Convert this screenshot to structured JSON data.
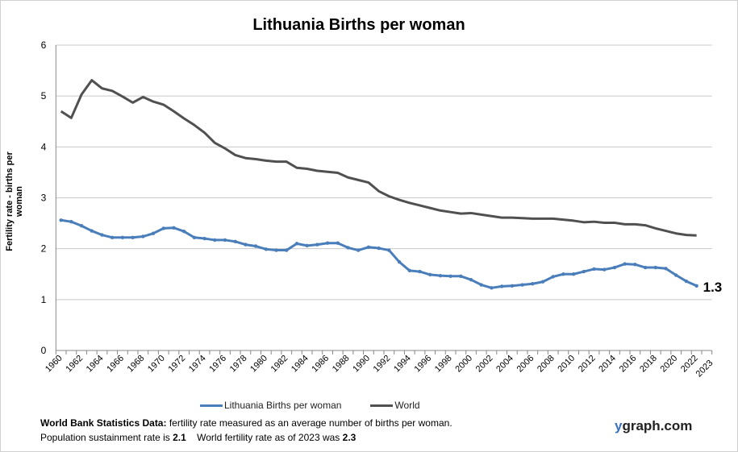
{
  "chart_data": {
    "type": "line",
    "title": "Lithuania Births per woman",
    "xlabel": "",
    "ylabel": "Fertility rate  - births per woman",
    "ylim": [
      0,
      6
    ],
    "yticks": [
      0,
      1,
      2,
      3,
      4,
      5,
      6
    ],
    "grid": true,
    "legend": "bottom",
    "x": [
      1960,
      1961,
      1962,
      1963,
      1964,
      1965,
      1966,
      1967,
      1968,
      1969,
      1970,
      1971,
      1972,
      1973,
      1974,
      1975,
      1976,
      1977,
      1978,
      1979,
      1980,
      1981,
      1982,
      1983,
      1984,
      1985,
      1986,
      1987,
      1988,
      1989,
      1990,
      1991,
      1992,
      1993,
      1994,
      1995,
      1996,
      1997,
      1998,
      1999,
      2000,
      2001,
      2002,
      2003,
      2004,
      2005,
      2006,
      2007,
      2008,
      2009,
      2010,
      2011,
      2012,
      2013,
      2014,
      2015,
      2016,
      2017,
      2018,
      2019,
      2020,
      2021,
      2022,
      2023
    ],
    "xtick_labels": [
      "1960",
      "1962",
      "1964",
      "1966",
      "1968",
      "1970",
      "1972",
      "1974",
      "1976",
      "1978",
      "1980",
      "1982",
      "1984",
      "1986",
      "1988",
      "1990",
      "1992",
      "1994",
      "1996",
      "1998",
      "2000",
      "2002",
      "2004",
      "2006",
      "2008",
      "2010",
      "2012",
      "2014",
      "2016",
      "2018",
      "2020",
      "2022",
      "2023"
    ],
    "series": [
      {
        "name": "Lithuania Births per woman",
        "color": "#4a7ebb",
        "markers": true,
        "values": [
          2.56,
          2.53,
          2.45,
          2.35,
          2.27,
          2.22,
          2.22,
          2.22,
          2.24,
          2.3,
          2.4,
          2.41,
          2.34,
          2.22,
          2.2,
          2.17,
          2.17,
          2.14,
          2.08,
          2.05,
          1.99,
          1.97,
          1.97,
          2.1,
          2.06,
          2.08,
          2.11,
          2.11,
          2.02,
          1.97,
          2.03,
          2.01,
          1.97,
          1.74,
          1.57,
          1.55,
          1.49,
          1.47,
          1.46,
          1.46,
          1.39,
          1.29,
          1.23,
          1.26,
          1.27,
          1.29,
          1.31,
          1.35,
          1.45,
          1.5,
          1.5,
          1.55,
          1.6,
          1.59,
          1.63,
          1.7,
          1.69,
          1.63,
          1.63,
          1.61,
          1.48,
          1.36,
          1.27,
          null
        ]
      },
      {
        "name": "World",
        "color": "#505050",
        "markers": false,
        "values": [
          4.7,
          4.57,
          5.03,
          5.31,
          5.15,
          5.1,
          4.99,
          4.87,
          4.98,
          4.89,
          4.83,
          4.7,
          4.56,
          4.43,
          4.28,
          4.08,
          3.97,
          3.84,
          3.78,
          3.76,
          3.73,
          3.71,
          3.71,
          3.59,
          3.57,
          3.53,
          3.51,
          3.49,
          3.4,
          3.35,
          3.3,
          3.13,
          3.03,
          2.96,
          2.9,
          2.85,
          2.8,
          2.75,
          2.72,
          2.69,
          2.7,
          2.67,
          2.64,
          2.61,
          2.61,
          2.6,
          2.59,
          2.59,
          2.59,
          2.57,
          2.55,
          2.52,
          2.53,
          2.51,
          2.51,
          2.48,
          2.48,
          2.46,
          2.4,
          2.35,
          2.3,
          2.27,
          2.26,
          null
        ]
      }
    ],
    "annotations": [
      {
        "text": "1.3",
        "x": 2022,
        "series": "Lithuania Births per woman"
      }
    ]
  },
  "footer": {
    "line1_bold": "World Bank Statistics Data:",
    "line1_text": " fertility rate measured as an average number  of births per woman.",
    "line2_a": "Population sustainment rate is ",
    "line2_b": "2.1",
    "line2_c": "    World fertility rate as of 2023 was ",
    "line2_d": "2.3"
  },
  "logo": {
    "y": "y",
    "rest": "graph.com"
  }
}
